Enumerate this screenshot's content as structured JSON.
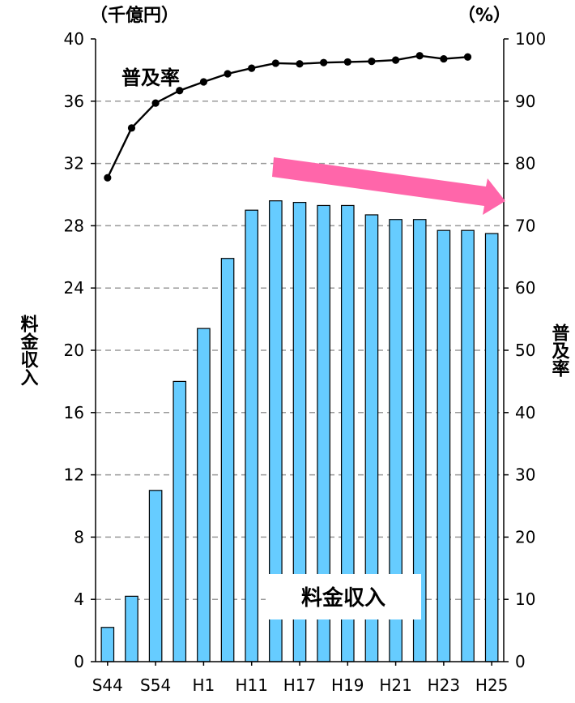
{
  "chart_data": {
    "type": "bar+line",
    "x_tick_labels": [
      "S44",
      "S54",
      "H1",
      "H11",
      "H17",
      "H19",
      "H21",
      "H23",
      "H25"
    ],
    "left_axis": {
      "title": "料金収入",
      "unit": "（千億円）",
      "ylim": [
        0,
        40
      ],
      "ticks": [
        0,
        4,
        8,
        12,
        16,
        20,
        24,
        28,
        32,
        36,
        40
      ]
    },
    "right_axis": {
      "title": "普及率",
      "unit": "（%）",
      "ylim": [
        0,
        100
      ],
      "ticks": [
        0,
        10,
        20,
        30,
        40,
        50,
        60,
        70,
        80,
        90,
        100
      ]
    },
    "grid": true,
    "series": [
      {
        "name": "料金収入",
        "type": "bar",
        "axis": "left",
        "color": "#66ccff",
        "values": [
          2.2,
          4.2,
          11.0,
          18.0,
          21.4,
          25.9,
          29.0,
          29.6,
          29.5,
          29.3,
          29.3,
          28.7,
          28.4,
          28.4,
          27.7,
          27.7,
          27.5
        ]
      },
      {
        "name": "普及率",
        "type": "line",
        "axis": "right",
        "color": "#000000",
        "values": [
          77.7,
          85.7,
          89.7,
          91.7,
          93.1,
          94.4,
          95.3,
          96.1,
          96.0,
          96.2,
          96.3,
          96.4,
          96.6,
          97.3,
          96.8,
          97.1
        ]
      }
    ],
    "trend_arrow_color": "#ff66aa"
  }
}
